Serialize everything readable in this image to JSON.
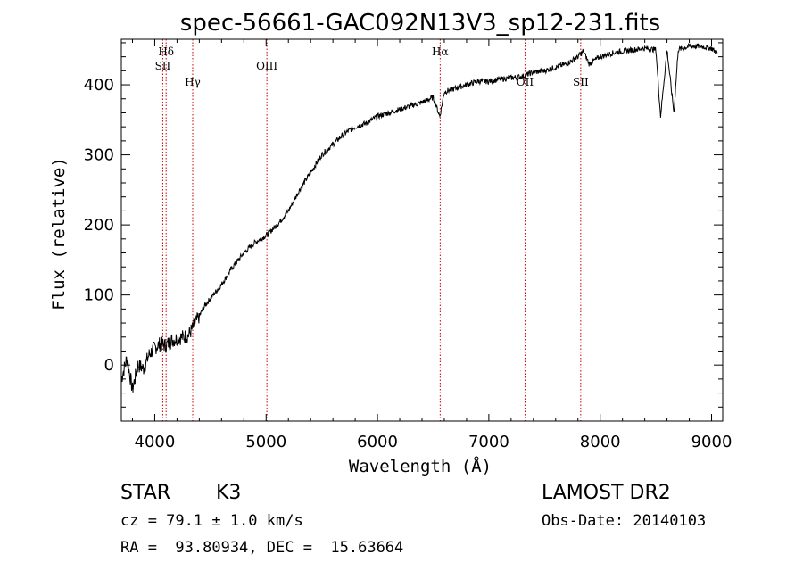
{
  "chart_data": {
    "type": "line",
    "title": "spec-56661-GAC092N13V3_sp12-231.fits",
    "xlabel": "Wavelength (Å)",
    "ylabel": "Flux (relative)",
    "xlim": [
      3700,
      9100
    ],
    "ylim": [
      -80,
      465
    ],
    "xticks": [
      4000,
      5000,
      6000,
      7000,
      8000,
      9000
    ],
    "yticks": [
      0,
      100,
      200,
      300,
      400
    ],
    "series": [
      {
        "x": [
          3700,
          3750,
          3800,
          3850,
          3900,
          3950,
          4000,
          4050,
          4100,
          4150,
          4200,
          4250,
          4300,
          4350,
          4400,
          4450,
          4500,
          4600,
          4700,
          4800,
          4900,
          5000,
          5100,
          5200,
          5300,
          5400,
          5500,
          5600,
          5700,
          5800,
          5900,
          6000,
          6100,
          6200,
          6300,
          6400,
          6500,
          6560,
          6600,
          6700,
          6800,
          6900,
          7000,
          7100,
          7200,
          7300,
          7400,
          7500,
          7600,
          7700,
          7800,
          7850,
          7900,
          8000,
          8100,
          8200,
          8300,
          8400,
          8500,
          8542,
          8600,
          8662,
          8700,
          8800,
          8900,
          9000,
          9050
        ],
        "y": [
          -20,
          10,
          -35,
          0,
          -5,
          15,
          25,
          30,
          28,
          35,
          38,
          40,
          42,
          55,
          70,
          85,
          95,
          115,
          140,
          160,
          175,
          185,
          200,
          220,
          250,
          275,
          300,
          315,
          330,
          340,
          345,
          355,
          360,
          365,
          370,
          375,
          382,
          355,
          390,
          395,
          400,
          405,
          405,
          408,
          410,
          412,
          418,
          420,
          425,
          430,
          440,
          448,
          430,
          440,
          445,
          448,
          450,
          452,
          450,
          355,
          450,
          360,
          450,
          455,
          455,
          452,
          445
        ]
      }
    ],
    "lines": [
      {
        "label": "Hδ",
        "x": 4102
      },
      {
        "label": "SII",
        "x": 4072
      },
      {
        "label": "Hγ",
        "x": 4341
      },
      {
        "label": "OIII",
        "x": 5007
      },
      {
        "label": "Hα",
        "x": 6563
      },
      {
        "label": "OII",
        "x": 7325
      },
      {
        "label": "SII",
        "x": 7825
      }
    ],
    "grid": false,
    "line_color": "#000000",
    "marker_color": "#cc0000"
  },
  "info": {
    "object_type": "STAR",
    "subclass": "K3",
    "survey": "LAMOST DR2",
    "cz": "cz = 79.1 ± 1.0 km/s",
    "obs_date": "Obs-Date: 20140103",
    "coords": "RA =  93.80934, DEC =  15.63664"
  }
}
